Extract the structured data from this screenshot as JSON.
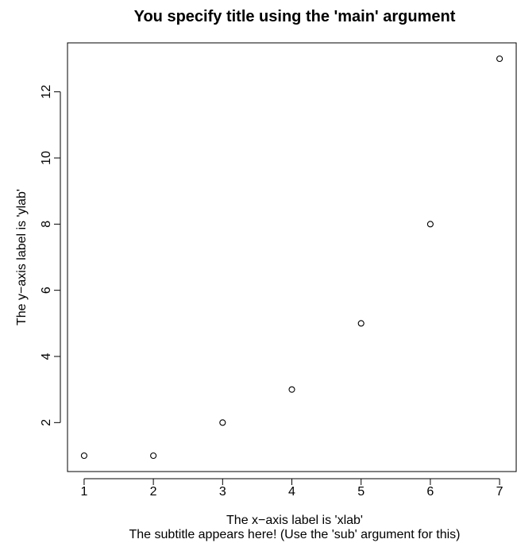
{
  "chart_data": {
    "type": "scatter",
    "title": "You specify title using the 'main' argument",
    "subtitle": "The subtitle appears here! (Use the 'sub' argument for this)",
    "xlabel": "The x−axis label is 'xlab'",
    "ylabel": "The y−axis label is 'ylab'",
    "x": [
      1,
      2,
      3,
      4,
      5,
      6,
      7
    ],
    "y": [
      1,
      1,
      2,
      3,
      5,
      8,
      13
    ],
    "xlim": [
      0.76,
      7.24
    ],
    "ylim": [
      0.52,
      13.48
    ],
    "xticks": [
      1,
      2,
      3,
      4,
      5,
      6,
      7
    ],
    "yticks": [
      2,
      4,
      6,
      8,
      10,
      12
    ],
    "xtick_labels": [
      "1",
      "2",
      "3",
      "4",
      "5",
      "6",
      "7"
    ],
    "ytick_labels": [
      "2",
      "4",
      "6",
      "8",
      "10",
      "12"
    ],
    "marker": "open-circle",
    "grid": false,
    "colors": {
      "points": "#000000",
      "axes": "#000000",
      "background": "#ffffff"
    }
  }
}
